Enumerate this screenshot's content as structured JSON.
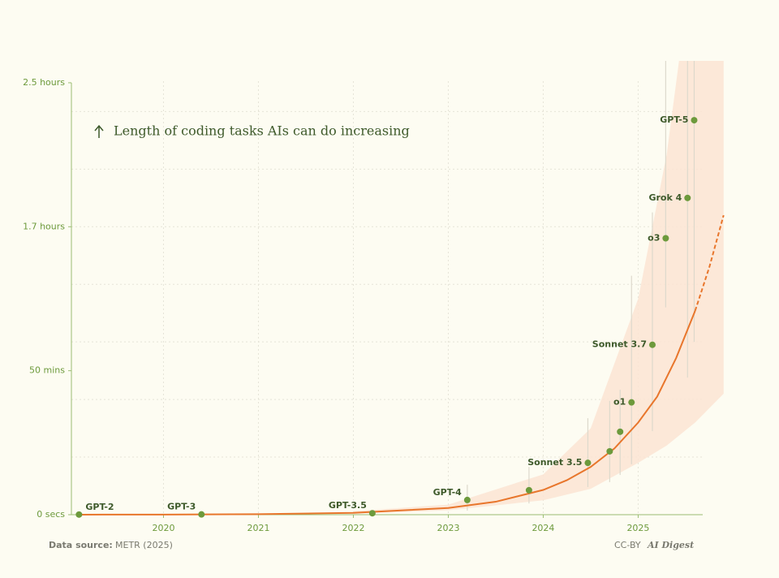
{
  "chart_data": {
    "type": "scatter",
    "title": "Length of coding tasks AIs can do increasing",
    "labels": [
      "GPT-2",
      "GPT-3",
      "GPT-3.5",
      "GPT-4",
      null,
      "Sonnet 3.5",
      null,
      null,
      "o1",
      "Sonnet 3.7",
      "o3",
      "Grok 4",
      "GPT-5"
    ],
    "x": [
      2019.11,
      2020.4,
      2022.2,
      2023.2,
      2023.85,
      2024.47,
      2024.7,
      2024.81,
      2024.93,
      2025.15,
      2025.29,
      2025.52,
      2025.59
    ],
    "values": [
      0.05,
      0.1,
      0.5,
      5.1,
      8.5,
      18,
      22,
      28.8,
      39,
      59,
      96,
      110,
      137
    ],
    "err_low": [
      null,
      null,
      null,
      1.4,
      3.9,
      9.6,
      11.3,
      13.8,
      17.5,
      29,
      72,
      47.6,
      60
    ],
    "err_high": [
      null,
      null,
      null,
      10.4,
      16.6,
      33.5,
      39.5,
      43.4,
      83,
      105,
      170,
      180,
      200
    ],
    "color": "#6d9a3c",
    "trend": {
      "color": "#e8762c",
      "x": [
        2019.1,
        2020,
        2021,
        2022,
        2023,
        2023.5,
        2024,
        2024.25,
        2024.5,
        2024.75,
        2025,
        2025.2,
        2025.4,
        2025.6
      ],
      "values": [
        0.014,
        0.046,
        0.17,
        0.63,
        2.34,
        4.5,
        8.6,
        12,
        16.6,
        23,
        32,
        41,
        54.4,
        70.8
      ]
    },
    "projection": {
      "x": [
        2025.6,
        2025.75,
        2025.9
      ],
      "values": [
        70.8,
        86,
        104
      ]
    },
    "band": {
      "color": "#fbe4d3",
      "x": [
        2022,
        2023,
        2024,
        2024.5,
        2025,
        2025.3,
        2025.6,
        2025.9
      ],
      "low": [
        0.3,
        1.5,
        5,
        9,
        18,
        24,
        32,
        42
      ],
      "high": [
        1.2,
        3.5,
        14,
        30,
        75,
        125,
        200,
        300
      ]
    },
    "xlim": [
      2019.03,
      2025.68
    ],
    "xticks": [
      2020,
      2021,
      2022,
      2023,
      2024,
      2025
    ],
    "ylim": [
      0,
      157.6
    ],
    "yticks": [
      {
        "value": 0,
        "label": "0 secs"
      },
      {
        "value": 50,
        "label": "50 mins"
      },
      {
        "value": 100,
        "label": "1.7 hours"
      },
      {
        "value": 150,
        "label": "2.5 hours"
      }
    ],
    "ygrid": [
      20,
      40,
      60,
      80,
      100,
      120,
      140
    ],
    "grid": true,
    "source_label": "Data source:",
    "source": "METR (2025)",
    "license": "CC-BY",
    "brand": "AI Digest"
  }
}
